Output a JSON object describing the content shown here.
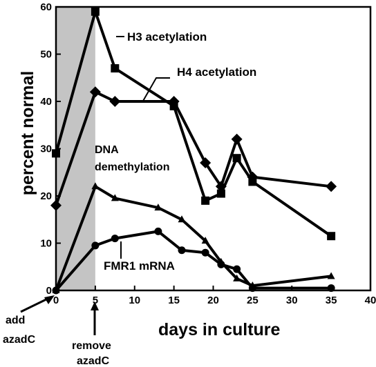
{
  "chart_data": {
    "type": "line",
    "xlabel": "days in culture",
    "ylabel": "percent normal",
    "xlim": [
      0,
      40
    ],
    "ylim": [
      0,
      60
    ],
    "xticks": [
      0,
      5,
      10,
      15,
      20,
      25,
      30,
      35,
      40
    ],
    "yticks": [
      0,
      10,
      20,
      30,
      40,
      50,
      60
    ],
    "shaded_region": {
      "x": [
        0,
        5
      ],
      "color": "#c4c4c4"
    },
    "series": [
      {
        "name": "H3 acetylation",
        "marker": "square",
        "x": [
          0,
          5,
          7.5,
          15,
          19,
          21,
          23,
          25,
          35
        ],
        "y": [
          29,
          59,
          47,
          39,
          19,
          20.5,
          28,
          23,
          11.5
        ]
      },
      {
        "name": "H4 acetylation",
        "marker": "diamond",
        "x": [
          0,
          5,
          7.5,
          15,
          19,
          21,
          23,
          25,
          35
        ],
        "y": [
          18,
          42,
          40,
          40,
          27,
          22,
          32,
          24,
          22
        ]
      },
      {
        "name": "DNA demethylation",
        "marker": "triangle",
        "x": [
          0,
          5,
          7.5,
          13,
          16,
          19,
          21,
          23,
          25,
          35
        ],
        "y": [
          0,
          22,
          19.5,
          17.5,
          15,
          10.5,
          6,
          2.5,
          1,
          3
        ]
      },
      {
        "name": "FMR1 mRNA",
        "marker": "circle",
        "x": [
          0,
          5,
          7.5,
          13,
          16,
          19,
          21,
          23,
          25,
          35
        ],
        "y": [
          0,
          9.5,
          11,
          12.5,
          8.5,
          8,
          5.5,
          4.5,
          0.5,
          0.5
        ]
      }
    ],
    "annotations": {
      "add_line1": "add",
      "add_line2": "azadC",
      "remove_line1": "remove",
      "remove_line2": "azadC"
    },
    "colors": {
      "lines": "#000000",
      "shade": "#c4c4c4"
    }
  }
}
